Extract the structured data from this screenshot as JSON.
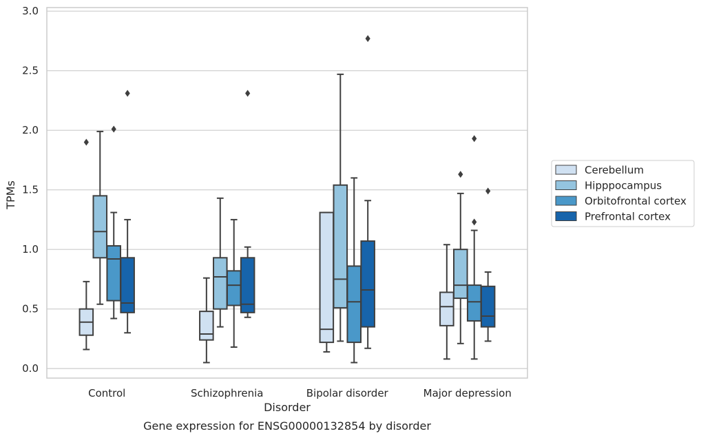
{
  "chart_data": {
    "type": "box",
    "title": "",
    "caption": "Gene expression for ENSG00000132854 by disorder",
    "xlabel": "Disorder",
    "ylabel": "TPMs",
    "ylim": [
      -0.08,
      3.03
    ],
    "yticks": [
      "0.0",
      "0.5",
      "1.0",
      "1.5",
      "2.0",
      "2.5",
      "3.0"
    ],
    "grid": "horizontal",
    "legend_position": "right",
    "categories": [
      "Control",
      "Schizophrenia",
      "Bipolar disorder",
      "Major depression"
    ],
    "series": [
      {
        "name": "Cerebellum",
        "color": "#d0e1f2",
        "boxes": [
          {
            "whislo": 0.16,
            "q1": 0.28,
            "med": 0.39,
            "q3": 0.5,
            "whishi": 0.73,
            "fliers": [
              1.9
            ]
          },
          {
            "whislo": 0.05,
            "q1": 0.24,
            "med": 0.29,
            "q3": 0.48,
            "whishi": 0.76,
            "fliers": []
          },
          {
            "whislo": 0.14,
            "q1": 0.22,
            "med": 0.33,
            "q3": 1.31,
            "whishi": 1.31,
            "fliers": []
          },
          {
            "whislo": 0.08,
            "q1": 0.36,
            "med": 0.52,
            "q3": 0.64,
            "whishi": 1.04,
            "fliers": []
          }
        ]
      },
      {
        "name": "Hipppocampus",
        "color": "#94c4df",
        "boxes": [
          {
            "whislo": 0.54,
            "q1": 0.93,
            "med": 1.15,
            "q3": 1.45,
            "whishi": 1.99,
            "fliers": []
          },
          {
            "whislo": 0.35,
            "q1": 0.5,
            "med": 0.77,
            "q3": 0.93,
            "whishi": 1.43,
            "fliers": []
          },
          {
            "whislo": 0.23,
            "q1": 0.51,
            "med": 0.75,
            "q3": 1.54,
            "whishi": 2.47,
            "fliers": []
          },
          {
            "whislo": 0.21,
            "q1": 0.59,
            "med": 0.7,
            "q3": 1.0,
            "whishi": 1.47,
            "fliers": [
              1.63
            ]
          }
        ]
      },
      {
        "name": "Orbitofrontal cortex",
        "color": "#4a98c9",
        "boxes": [
          {
            "whislo": 0.42,
            "q1": 0.57,
            "med": 0.92,
            "q3": 1.03,
            "whishi": 1.31,
            "fliers": [
              2.01
            ]
          },
          {
            "whislo": 0.18,
            "q1": 0.53,
            "med": 0.7,
            "q3": 0.82,
            "whishi": 1.25,
            "fliers": []
          },
          {
            "whislo": 0.05,
            "q1": 0.22,
            "med": 0.56,
            "q3": 0.86,
            "whishi": 1.6,
            "fliers": []
          },
          {
            "whislo": 0.08,
            "q1": 0.4,
            "med": 0.56,
            "q3": 0.7,
            "whishi": 1.16,
            "fliers": [
              1.23,
              1.93
            ]
          }
        ]
      },
      {
        "name": "Prefrontal cortex",
        "color": "#1764ab",
        "boxes": [
          {
            "whislo": 0.3,
            "q1": 0.47,
            "med": 0.55,
            "q3": 0.93,
            "whishi": 1.25,
            "fliers": [
              2.31
            ]
          },
          {
            "whislo": 0.43,
            "q1": 0.47,
            "med": 0.54,
            "q3": 0.93,
            "whishi": 1.02,
            "fliers": [
              2.31
            ]
          },
          {
            "whislo": 0.17,
            "q1": 0.35,
            "med": 0.66,
            "q3": 1.07,
            "whishi": 1.41,
            "fliers": [
              2.77
            ]
          },
          {
            "whislo": 0.23,
            "q1": 0.35,
            "med": 0.44,
            "q3": 0.69,
            "whishi": 0.81,
            "fliers": [
              1.49
            ]
          }
        ]
      }
    ]
  }
}
